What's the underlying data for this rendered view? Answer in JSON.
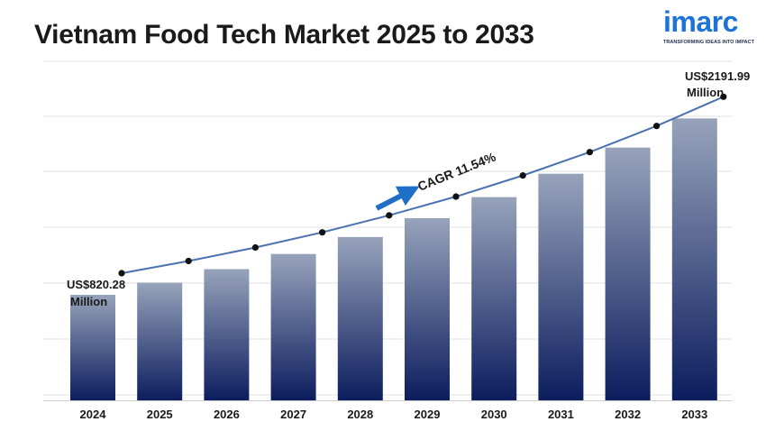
{
  "header": {
    "title": "Vietnam Food Tech Market 2025 to 2033"
  },
  "logo": {
    "word": "imarc",
    "tagline": "TRANSFORMING IDEAS INTO IMPACT",
    "color": "#1e73d8"
  },
  "chart_data": {
    "type": "bar",
    "title": "Vietnam Food Tech Market 2025 to 2033",
    "xlabel": "",
    "ylabel": "",
    "categories": [
      "2024",
      "2025",
      "2026",
      "2027",
      "2028",
      "2029",
      "2030",
      "2031",
      "2032",
      "2033"
    ],
    "series": [
      {
        "values": [
          820.28,
          915,
          1020,
          1138,
          1270,
          1416,
          1580,
          1762,
          1965,
          2191.99
        ]
      }
    ],
    "ylim": [
      0,
      2650
    ],
    "grid": true,
    "legend": "none",
    "colors": {
      "bar_top": "#97a3bb",
      "bar_bottom": "#0c1d5e",
      "trend_line": "#4a72b0",
      "marker": "#111111",
      "arrow": "#1f6fc7"
    },
    "annotations": {
      "start_value": "US$820.28",
      "start_unit": "Million",
      "end_value": "US$2191.99",
      "end_unit": "Million",
      "cagr": "CAGR 11.54%"
    }
  }
}
